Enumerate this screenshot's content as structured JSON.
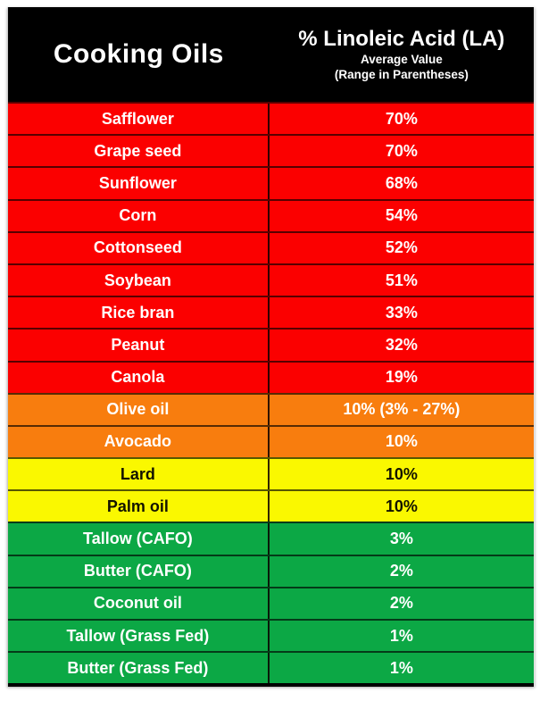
{
  "header": {
    "oils_label": "Cooking Oils",
    "la_title": "% Linoleic Acid (LA)",
    "la_sub1": "Average Value",
    "la_sub2": "(Range in Parentheses)"
  },
  "colors": {
    "header_bg": "#000000",
    "header_text": "#FFFFFF",
    "band_red": "#FB0000",
    "band_orange": "#F87D0E",
    "band_yellow": "#FAF800",
    "band_green": "#0CA845",
    "row_divider": "rgba(0,0,0,0.65)",
    "yellow_band_text": "#131300",
    "band_text": "#FFFFFF"
  },
  "rows": [
    {
      "oil": "Safflower",
      "display": "70%",
      "band": "red"
    },
    {
      "oil": "Grape seed",
      "display": "70%",
      "band": "red"
    },
    {
      "oil": "Sunflower",
      "display": "68%",
      "band": "red"
    },
    {
      "oil": "Corn",
      "display": "54%",
      "band": "red"
    },
    {
      "oil": "Cottonseed",
      "display": "52%",
      "band": "red"
    },
    {
      "oil": "Soybean",
      "display": "51%",
      "band": "red"
    },
    {
      "oil": "Rice bran",
      "display": "33%",
      "band": "red"
    },
    {
      "oil": "Peanut",
      "display": "32%",
      "band": "red"
    },
    {
      "oil": "Canola",
      "display": "19%",
      "band": "red"
    },
    {
      "oil": "Olive oil",
      "display": "10% (3% - 27%)",
      "band": "orange"
    },
    {
      "oil": "Avocado",
      "display": "10%",
      "band": "orange"
    },
    {
      "oil": "Lard",
      "display": "10%",
      "band": "yellow"
    },
    {
      "oil": "Palm oil",
      "display": "10%",
      "band": "yellow"
    },
    {
      "oil": "Tallow (CAFO)",
      "display": "3%",
      "band": "green"
    },
    {
      "oil": "Butter (CAFO)",
      "display": "2%",
      "band": "green"
    },
    {
      "oil": "Coconut oil",
      "display": "2%",
      "band": "green"
    },
    {
      "oil": "Tallow (Grass Fed)",
      "display": "1%",
      "band": "green"
    },
    {
      "oil": "Butter (Grass Fed)",
      "display": "1%",
      "band": "green"
    }
  ],
  "chart_data": {
    "type": "table",
    "title": "% Linoleic Acid (LA) in Cooking Oils",
    "columns": [
      "Cooking Oils",
      "% Linoleic Acid (LA)"
    ],
    "column_subtitles": [
      "",
      "Average Value (Range in Parentheses)"
    ],
    "categories": [
      "Safflower",
      "Grape seed",
      "Sunflower",
      "Corn",
      "Cottonseed",
      "Soybean",
      "Rice bran",
      "Peanut",
      "Canola",
      "Olive oil",
      "Avocado",
      "Lard",
      "Palm oil",
      "Tallow (CAFO)",
      "Butter (CAFO)",
      "Coconut oil",
      "Tallow (Grass Fed)",
      "Butter (Grass Fed)"
    ],
    "values": [
      70,
      70,
      68,
      54,
      52,
      51,
      33,
      32,
      19,
      10,
      10,
      10,
      10,
      3,
      2,
      2,
      1,
      1
    ],
    "value_display": [
      "70%",
      "70%",
      "68%",
      "54%",
      "52%",
      "51%",
      "33%",
      "32%",
      "19%",
      "10% (3% - 27%)",
      "10%",
      "10%",
      "10%",
      "3%",
      "2%",
      "2%",
      "1%",
      "1%"
    ],
    "ranges": {
      "Olive oil": {
        "min": 3,
        "max": 27
      }
    },
    "row_color_bands": [
      "red",
      "red",
      "red",
      "red",
      "red",
      "red",
      "red",
      "red",
      "red",
      "orange",
      "orange",
      "yellow",
      "yellow",
      "green",
      "green",
      "green",
      "green",
      "green"
    ]
  }
}
